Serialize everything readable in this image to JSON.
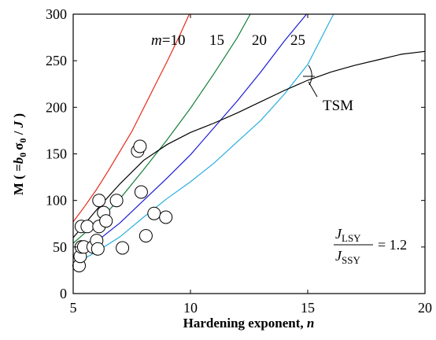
{
  "chart_data": {
    "type": "scatter",
    "xlabel": {
      "prefix": "Hardening exponent, ",
      "var": "n"
    },
    "ylabel": {
      "lead": "M ( =",
      "b": "b",
      "b_sub": "0",
      "sigma": "σ",
      "sigma_sub": "0",
      "slash": " / ",
      "J": "J",
      "tail": " )"
    },
    "xlim": [
      5,
      20
    ],
    "ylim": [
      0,
      300
    ],
    "xticks": [
      "5",
      "10",
      "15",
      "20"
    ],
    "yticks": [
      "0",
      "50",
      "100",
      "150",
      "200",
      "250",
      "300"
    ],
    "grid": false,
    "series": [
      {
        "name": "m=10",
        "label_m": "m",
        "label_eq": "=10",
        "color": "#e8291c",
        "x": [
          5.0,
          5.5,
          6.0,
          6.5,
          7.0,
          7.5,
          8.0,
          8.5,
          9.0,
          9.5,
          9.95
        ],
        "y": [
          77,
          94,
          112,
          132,
          153,
          174,
          199,
          224,
          249,
          275,
          300
        ]
      },
      {
        "name": "15",
        "color": "#14803a",
        "x": [
          5.0,
          6.0,
          7.0,
          8.0,
          9.0,
          10.0,
          11.0,
          12.0,
          12.55
        ],
        "y": [
          54,
          76,
          102,
          133,
          165,
          199,
          236,
          275,
          300
        ]
      },
      {
        "name": "20",
        "color": "#1c1cd6",
        "x": [
          5.0,
          6.0,
          7.0,
          8.0,
          9.0,
          10.0,
          11.0,
          12.0,
          13.0,
          14.0,
          14.95
        ],
        "y": [
          40,
          56,
          76,
          100,
          124,
          149,
          178,
          207,
          238,
          271,
          300
        ]
      },
      {
        "name": "25",
        "color": "#2aaee0",
        "x": [
          5.0,
          6.0,
          7.0,
          8.0,
          9.0,
          10.0,
          11.0,
          12.0,
          13.0,
          14.0,
          15.0,
          16.1
        ],
        "y": [
          31,
          45,
          61,
          82,
          102,
          120,
          140,
          163,
          186,
          214,
          246,
          300
        ]
      },
      {
        "name": "TSM",
        "color": "#000000",
        "x": [
          5.0,
          6.0,
          7.0,
          8.0,
          9.0,
          10.0,
          11.0,
          12.0,
          13.0,
          14.0,
          15.0,
          16.0,
          17.0,
          18.0,
          19.0,
          20.0
        ],
        "y": [
          60,
          90,
          118,
          143,
          160,
          173,
          183,
          194,
          206,
          218,
          229,
          238,
          245,
          251,
          257,
          260
        ]
      }
    ],
    "points": {
      "x": [
        5.25,
        5.3,
        5.35,
        5.35,
        5.45,
        5.6,
        5.85,
        6.0,
        6.05,
        6.1,
        6.1,
        6.3,
        6.4,
        6.85,
        7.1,
        7.75,
        7.85,
        7.9,
        8.1,
        8.45,
        8.95
      ],
      "y": [
        30,
        40,
        72,
        50,
        50,
        72,
        50,
        57,
        48,
        72,
        100,
        87,
        78,
        100,
        49,
        153,
        158,
        109,
        62,
        86,
        82
      ]
    },
    "equation": {
      "num": "J",
      "num_sub": "LSY",
      "den": "J",
      "den_sub": "SSY",
      "rhs": "= 1.2"
    }
  }
}
